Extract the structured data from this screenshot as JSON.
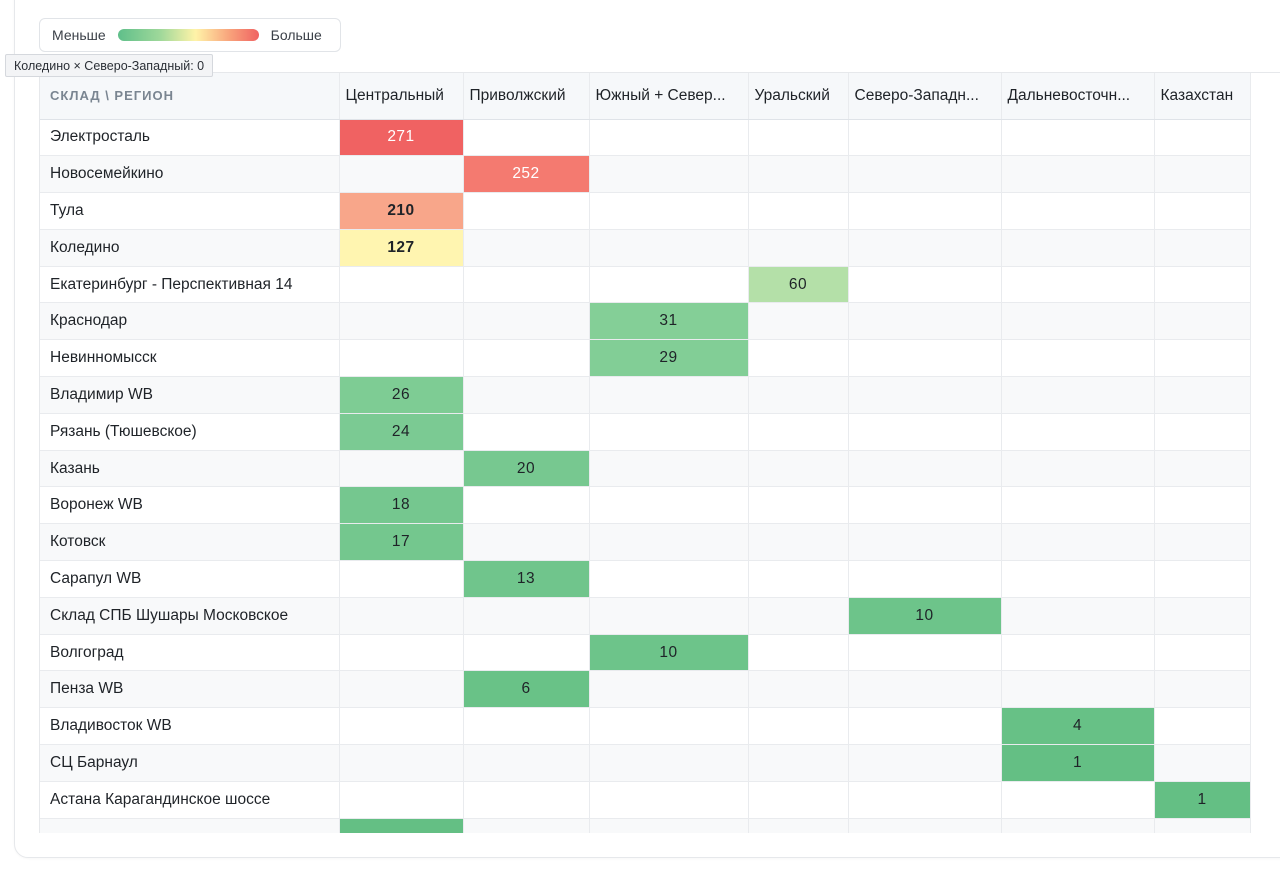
{
  "legend": {
    "less": "Меньше",
    "more": "Больше"
  },
  "tooltip": "Коледино × Северо-Западный: 0",
  "table": {
    "corner": "СКЛАД \\ РЕГИОН",
    "columns": [
      "Центральный",
      "Приволжский",
      "Южный + Север...",
      "Уральский",
      "Северо-Западн...",
      "Дальневосточн...",
      "Казахстан"
    ],
    "rows": [
      {
        "label": "Электросталь",
        "col": 0,
        "value": "271",
        "color": "#f06262",
        "text": "#ffffff",
        "bold": false
      },
      {
        "label": "Новосемейкино",
        "col": 1,
        "value": "252",
        "color": "#f47a70",
        "text": "#ffffff",
        "bold": false
      },
      {
        "label": "Тула",
        "col": 0,
        "value": "210",
        "color": "#f8a68a",
        "text": "#1f2328",
        "bold": true
      },
      {
        "label": "Коледино",
        "col": 0,
        "value": "127",
        "color": "#fff5b0",
        "text": "#1f2328",
        "bold": true
      },
      {
        "label": "Екатеринбург - Перспективная 14",
        "col": 3,
        "value": "60",
        "color": "#b4e0a8",
        "text": "#1f2328",
        "bold": false
      },
      {
        "label": "Краснодар",
        "col": 2,
        "value": "31",
        "color": "#84cf97",
        "text": "#1f2328",
        "bold": false
      },
      {
        "label": "Невинномысск",
        "col": 2,
        "value": "29",
        "color": "#82ce96",
        "text": "#1f2328",
        "bold": false
      },
      {
        "label": "Владимир WB",
        "col": 0,
        "value": "26",
        "color": "#7ecc94",
        "text": "#1f2328",
        "bold": false
      },
      {
        "label": "Рязань (Тюшевское)",
        "col": 0,
        "value": "24",
        "color": "#7bca93",
        "text": "#1f2328",
        "bold": false
      },
      {
        "label": "Казань",
        "col": 1,
        "value": "20",
        "color": "#77c890",
        "text": "#1f2328",
        "bold": false
      },
      {
        "label": "Воронеж WB",
        "col": 0,
        "value": "18",
        "color": "#75c78f",
        "text": "#1f2328",
        "bold": false
      },
      {
        "label": "Котовск",
        "col": 0,
        "value": "17",
        "color": "#74c78e",
        "text": "#1f2328",
        "bold": false
      },
      {
        "label": "Сарапул WB",
        "col": 1,
        "value": "13",
        "color": "#70c58c",
        "text": "#1f2328",
        "bold": false
      },
      {
        "label": "Склад СПБ Шушары Московское",
        "col": 4,
        "value": "10",
        "color": "#6dc48a",
        "text": "#1f2328",
        "bold": false
      },
      {
        "label": "Волгоград",
        "col": 2,
        "value": "10",
        "color": "#6dc48a",
        "text": "#1f2328",
        "bold": false
      },
      {
        "label": "Пенза WB",
        "col": 1,
        "value": "6",
        "color": "#69c287",
        "text": "#1f2328",
        "bold": false
      },
      {
        "label": "Владивосток WB",
        "col": 5,
        "value": "4",
        "color": "#67c186",
        "text": "#1f2328",
        "bold": false
      },
      {
        "label": "СЦ Барнаул",
        "col": 5,
        "value": "1",
        "color": "#64bf84",
        "text": "#1f2328",
        "bold": false
      },
      {
        "label": "Астана Карагандинское шоссе",
        "col": 6,
        "value": "1",
        "color": "#64bf84",
        "text": "#1f2328",
        "bold": false
      },
      {
        "label": "",
        "col": 0,
        "value": "",
        "color": "#64bf84",
        "text": "#1f2328",
        "bold": false
      }
    ]
  }
}
